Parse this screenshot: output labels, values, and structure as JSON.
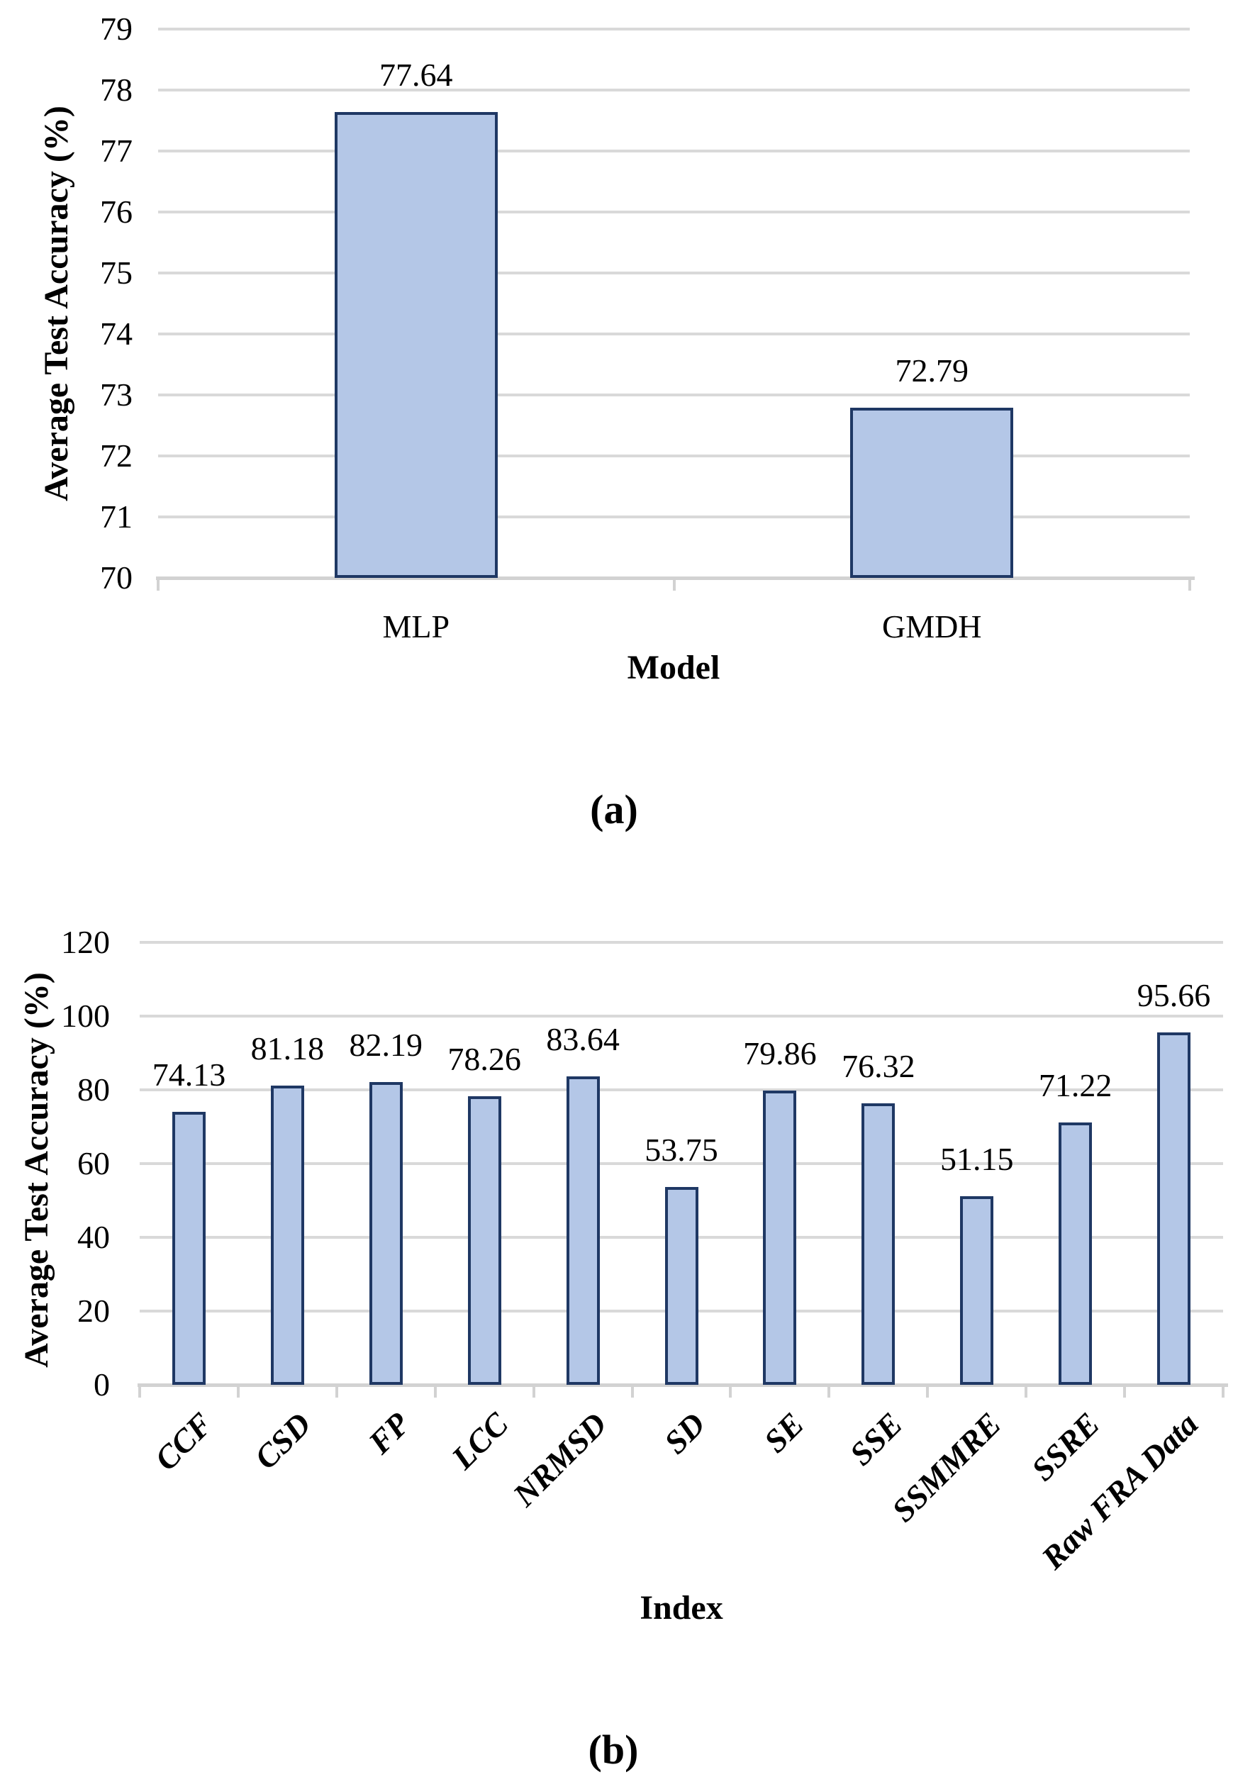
{
  "figure": {
    "background": "#ffffff",
    "text_color": "#000000"
  },
  "style": {
    "bar_fill": "#b4c7e7",
    "bar_border": "#1f3864",
    "gridline_color": "#d9d9d9",
    "axis_color": "#d2d2d2"
  },
  "chart_data": [
    {
      "id": "a",
      "type": "bar",
      "caption": "(a)",
      "ylabel": "Average Test Accuracy (%)",
      "xlabel": "Model",
      "ylim": [
        70,
        79
      ],
      "ytick_step": 1,
      "ytick_labels": [
        "70",
        "71",
        "72",
        "73",
        "74",
        "75",
        "76",
        "77",
        "78",
        "79"
      ],
      "grid": "horizontal",
      "legend": "none",
      "categories": [
        "MLP",
        "GMDH"
      ],
      "values": [
        77.64,
        72.79
      ],
      "value_labels": [
        "77.64",
        "72.79"
      ],
      "x_tick_label_style": "horizontal"
    },
    {
      "id": "b",
      "type": "bar",
      "caption": "(b)",
      "ylabel": "Average Test Accuracy (%)",
      "xlabel": "Index",
      "ylim": [
        0,
        120
      ],
      "ytick_step": 20,
      "ytick_labels": [
        "0",
        "20",
        "40",
        "60",
        "80",
        "100",
        "120"
      ],
      "grid": "horizontal",
      "legend": "none",
      "categories": [
        "CCF",
        "CSD",
        "FP",
        "LCC",
        "NRMSD",
        "SD",
        "SE",
        "SSE",
        "SSMMRE",
        "SSRE",
        "Raw FRA Data"
      ],
      "values": [
        74.13,
        81.18,
        82.19,
        78.26,
        83.64,
        53.75,
        79.86,
        76.32,
        51.15,
        71.22,
        95.66
      ],
      "value_labels": [
        "74.13",
        "81.18",
        "82.19",
        "78.26",
        "83.64",
        "53.75",
        "79.86",
        "76.32",
        "51.15",
        "71.22",
        "95.66"
      ],
      "x_tick_label_style": "rotated-45-italic"
    }
  ]
}
